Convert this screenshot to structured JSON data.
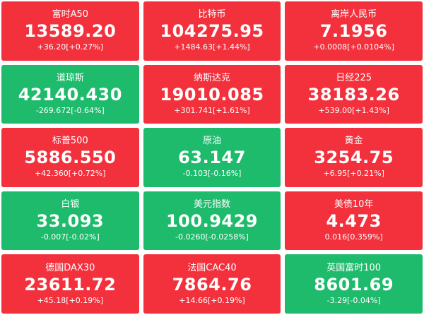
{
  "tiles": [
    {
      "name": "富时A50",
      "price": "13589.20",
      "change": "+36.20[+0.27%]",
      "color": "#f3313d"
    },
    {
      "name": "比特币",
      "price": "104275.95",
      "change": "+1484.63[+1.44%]",
      "color": "#f3313d"
    },
    {
      "name": "离岸人民币",
      "price": "7.1956",
      "change": "+0.0008[+0.0104%]",
      "color": "#f3313d"
    },
    {
      "name": "道琼斯",
      "price": "42140.430",
      "change": "-269.672[-0.64%]",
      "color": "#1ebb6c"
    },
    {
      "name": "纳斯达克",
      "price": "19010.085",
      "change": "+301.741[+1.61%]",
      "color": "#f3313d"
    },
    {
      "name": "日经225",
      "price": "38183.26",
      "change": "+539.00[+1.43%]",
      "color": "#f3313d"
    },
    {
      "name": "标普500",
      "price": "5886.550",
      "change": "+42.360[+0.72%]",
      "color": "#f3313d"
    },
    {
      "name": "原油",
      "price": "63.147",
      "change": "-0.103[-0.16%]",
      "color": "#1ebb6c"
    },
    {
      "name": "黄金",
      "price": "3254.75",
      "change": "+6.95[+0.21%]",
      "color": "#f3313d"
    },
    {
      "name": "白银",
      "price": "33.093",
      "change": "-0.007[-0.02%]",
      "color": "#1ebb6c"
    },
    {
      "name": "美元指数",
      "price": "100.9429",
      "change": "-0.0260[-0.0258%]",
      "color": "#1ebb6c"
    },
    {
      "name": "美债10年",
      "price": "4.473",
      "change": "0.016[0.359%]",
      "color": "#f3313d"
    },
    {
      "name": "德国DAX30",
      "price": "23611.72",
      "change": "+45.18[+0.19%]",
      "color": "#f3313d"
    },
    {
      "name": "法国CAC40",
      "price": "7864.76",
      "change": "+14.66[+0.19%]",
      "color": "#f3313d"
    },
    {
      "name": "英国富时100",
      "price": "8601.69",
      "change": "-3.29[-0.04%]",
      "color": "#1ebb6c"
    }
  ]
}
